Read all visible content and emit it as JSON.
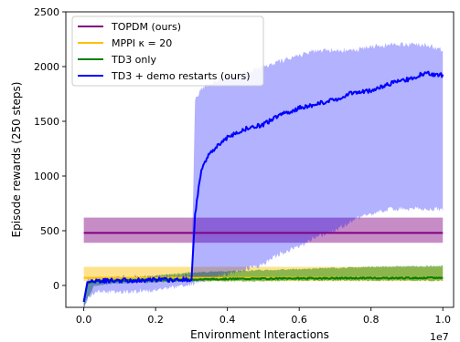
{
  "chart_data": {
    "type": "line",
    "title": "",
    "xlabel": "Environment Interactions",
    "ylabel": "Episode rewards (250 steps)",
    "x_multiplier_label": "1e7",
    "xlim": [
      -0.05,
      1.03
    ],
    "ylim": [
      -200,
      2500
    ],
    "xticks": [
      0.0,
      0.2,
      0.4,
      0.6,
      0.8,
      1.0
    ],
    "xtick_labels": [
      "0.0",
      "0.2",
      "0.4",
      "0.6",
      "0.8",
      "1.0"
    ],
    "yticks": [
      0,
      500,
      1000,
      1500,
      2000,
      2500
    ],
    "ytick_labels": [
      "0",
      "500",
      "1000",
      "1500",
      "2000",
      "2500"
    ],
    "grid": false,
    "legend_position": "top-left",
    "series": [
      {
        "name": "TOPDM (ours)",
        "color": "#800080",
        "mean": 480,
        "band": [
          390,
          620
        ],
        "x": [
          0.0,
          1.0
        ]
      },
      {
        "name": "MPPI κ = 20",
        "color": "#FFBF00",
        "mean": 70,
        "band": [
          40,
          170
        ],
        "x": [
          0.0,
          1.0
        ]
      },
      {
        "name": "TD3 only",
        "color": "#008000",
        "x": [
          0.0,
          0.01,
          0.03,
          0.1,
          0.2,
          0.3,
          0.4,
          0.5,
          0.6,
          0.7,
          0.8,
          0.9,
          1.0
        ],
        "values": [
          -150,
          20,
          40,
          45,
          50,
          55,
          60,
          62,
          65,
          66,
          68,
          68,
          70
        ],
        "upper": [
          -100,
          30,
          50,
          60,
          90,
          120,
          130,
          140,
          150,
          160,
          170,
          175,
          180
        ],
        "lower": [
          -200,
          -120,
          0,
          20,
          30,
          40,
          40,
          40,
          45,
          45,
          45,
          45,
          45
        ]
      },
      {
        "name": "TD3 + demo restarts (ours)",
        "color": "#0000FF",
        "x": [
          0.0,
          0.01,
          0.03,
          0.1,
          0.2,
          0.3,
          0.31,
          0.32,
          0.33,
          0.35,
          0.38,
          0.4,
          0.45,
          0.5,
          0.55,
          0.6,
          0.65,
          0.7,
          0.75,
          0.8,
          0.85,
          0.9,
          0.95,
          1.0
        ],
        "values": [
          -150,
          30,
          40,
          45,
          50,
          55,
          640,
          900,
          1080,
          1200,
          1300,
          1350,
          1430,
          1470,
          1560,
          1620,
          1660,
          1700,
          1760,
          1780,
          1840,
          1880,
          1940,
          1920
        ],
        "upper": [
          -100,
          60,
          60,
          70,
          80,
          90,
          1700,
          1750,
          1800,
          1850,
          1880,
          1900,
          1950,
          2000,
          2050,
          2100,
          2150,
          2150,
          2150,
          2180,
          2200,
          2200,
          2200,
          2150
        ],
        "lower": [
          -200,
          -120,
          -60,
          -60,
          -40,
          10,
          30,
          30,
          40,
          60,
          80,
          100,
          150,
          200,
          300,
          350,
          450,
          500,
          600,
          650,
          700,
          700,
          700,
          700
        ]
      }
    ]
  }
}
